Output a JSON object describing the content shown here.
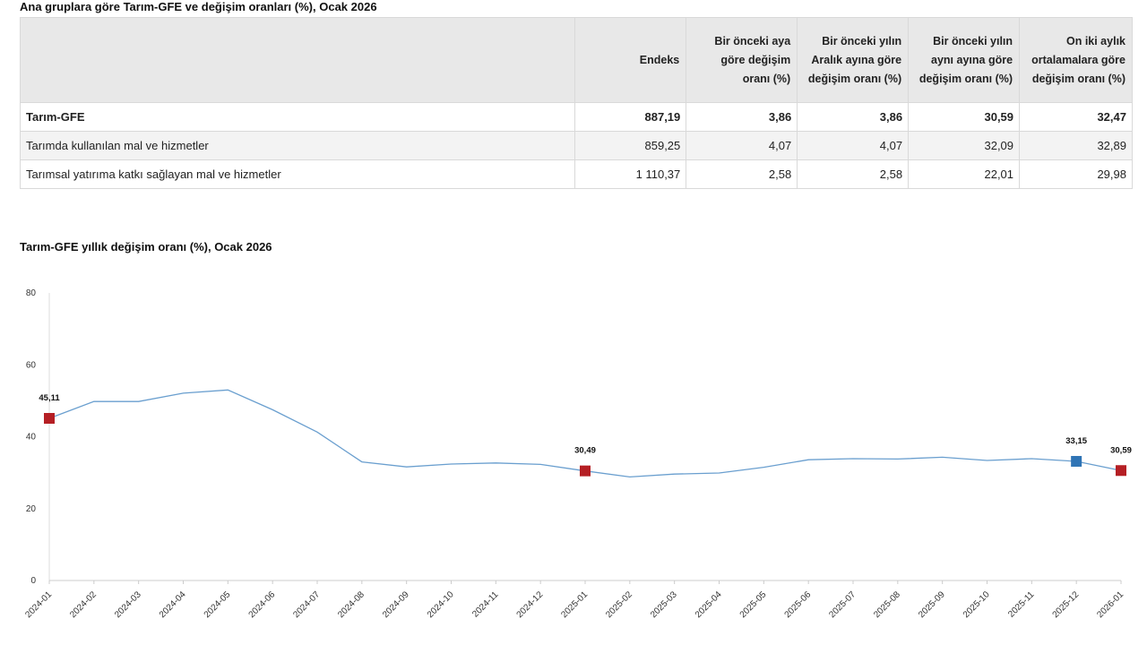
{
  "table": {
    "title": "Ana gruplara göre Tarım-GFE ve değişim oranları (%), Ocak 2026",
    "headers": [
      "",
      "Endeks",
      "Bir önceki aya göre değişim oranı (%)",
      "Bir önceki yılın Aralık ayına göre değişim oranı (%)",
      "Bir önceki yılın aynı ayına göre değişim oranı (%)",
      "On iki aylık ortalamalara göre değişim oranı (%)"
    ],
    "rows": [
      [
        "Tarım-GFE",
        "887,19",
        "3,86",
        "3,86",
        "30,59",
        "32,47"
      ],
      [
        "Tarımda kullanılan mal ve hizmetler",
        "859,25",
        "4,07",
        "4,07",
        "32,09",
        "32,89"
      ],
      [
        "Tarımsal yatırıma katkı sağlayan mal ve hizmetler",
        "1 110,37",
        "2,58",
        "2,58",
        "22,01",
        "29,98"
      ]
    ]
  },
  "chart_data": {
    "type": "line",
    "title": "Tarım-GFE yıllık değişim oranı (%), Ocak 2026",
    "xlabel": "",
    "ylabel": "",
    "ylim": [
      0,
      80
    ],
    "yticks": [
      0,
      20,
      40,
      60,
      80
    ],
    "grid": false,
    "line_color": "#6a9fcf",
    "categories": [
      "2024-01",
      "2024-02",
      "2024-03",
      "2024-04",
      "2024-05",
      "2024-06",
      "2024-07",
      "2024-08",
      "2024-09",
      "2024-10",
      "2024-11",
      "2024-12",
      "2025-01",
      "2025-02",
      "2025-03",
      "2025-04",
      "2025-05",
      "2025-06",
      "2025-07",
      "2025-08",
      "2025-09",
      "2025-10",
      "2025-11",
      "2025-12",
      "2026-01"
    ],
    "values": [
      45.11,
      49.8,
      49.8,
      52.1,
      53.0,
      47.5,
      41.3,
      33.0,
      31.6,
      32.4,
      32.7,
      32.3,
      30.49,
      28.8,
      29.6,
      29.9,
      31.5,
      33.6,
      33.9,
      33.8,
      34.3,
      33.4,
      33.9,
      33.15,
      30.59
    ],
    "highlighted": [
      {
        "index": 0,
        "label": "45,11",
        "color": "#b51f24"
      },
      {
        "index": 12,
        "label": "30,49",
        "color": "#b51f24"
      },
      {
        "index": 23,
        "label": "33,15",
        "color": "#2f74b5"
      },
      {
        "index": 24,
        "label": "30,59",
        "color": "#b51f24"
      }
    ]
  }
}
